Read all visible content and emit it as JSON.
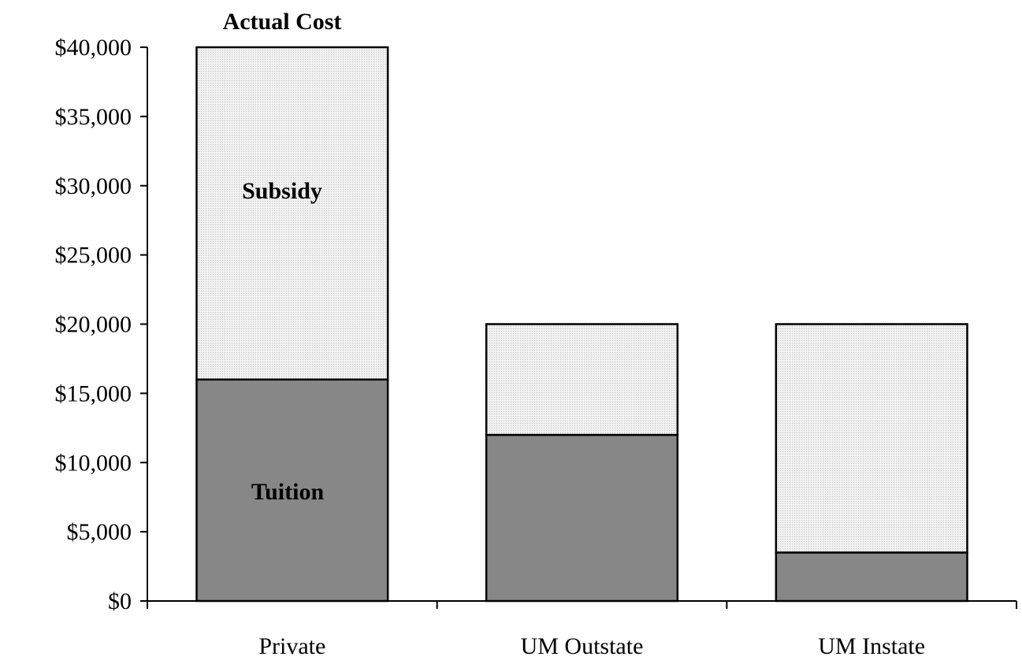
{
  "chart_data": {
    "type": "bar",
    "stacked": true,
    "title": "Actual Cost",
    "categories": [
      "Private",
      "UM Outstate",
      "UM Instate"
    ],
    "series": [
      {
        "name": "Tuition",
        "values": [
          16000,
          12000,
          3500
        ],
        "color": "#878787"
      },
      {
        "name": "Subsidy",
        "values": [
          24000,
          8000,
          16500
        ],
        "color": "#e6e6e6"
      }
    ],
    "ylim": [
      0,
      40000
    ],
    "yticks": [
      0,
      5000,
      10000,
      15000,
      20000,
      25000,
      30000,
      35000,
      40000
    ],
    "ytick_labels": [
      "$0",
      "$5,000",
      "$10,000",
      "$15,000",
      "$20,000",
      "$25,000",
      "$30,000",
      "$35,000",
      "$40,000"
    ],
    "xlabel": "",
    "ylabel": "",
    "grid": false,
    "legend": "none"
  }
}
